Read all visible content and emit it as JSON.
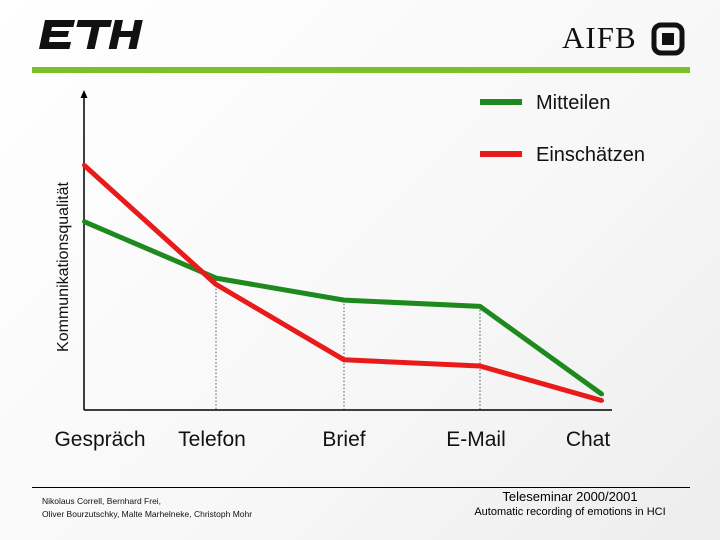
{
  "header": {
    "left_logo": "ETH",
    "right_logo": "AIFB",
    "rule_color": "#7cbf2a"
  },
  "chart_data": {
    "type": "line",
    "title": "",
    "xlabel": "",
    "ylabel": "Kommunikationsqualität",
    "categories": [
      "Gespräch",
      "Telefon",
      "Brief",
      "E-Mail",
      "Chat"
    ],
    "ylim": [
      0,
      100
    ],
    "grid": false,
    "legend_position": "top-right",
    "series": [
      {
        "name": "Mitteilen",
        "color": "#1e8a1e",
        "values": [
          60,
          42,
          35,
          33,
          5
        ]
      },
      {
        "name": "Einschätzen",
        "color": "#e81a1a",
        "values": [
          78,
          40,
          16,
          14,
          3
        ]
      }
    ]
  },
  "footer": {
    "authors_line1": "Nikolaus Correll, Bernhard Frei,",
    "authors_line2": "Oliver Bourzutschky, Malte Marhelneke, Christoph Mohr",
    "seminar": "Teleseminar 2000/2001",
    "subtitle": "Automatic recording of emotions in HCI"
  }
}
